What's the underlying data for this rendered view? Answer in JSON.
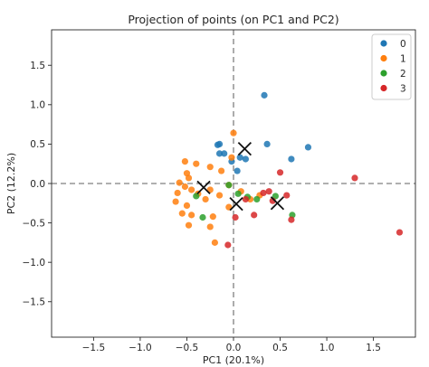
{
  "chart_data": {
    "type": "scatter",
    "title": "Projection of points (on PC1 and PC2)",
    "xlabel": "PC1 (20.1%)",
    "ylabel": "PC2 (12.2%)",
    "xlim": [
      -1.95,
      1.95
    ],
    "ylim": [
      -1.95,
      1.95
    ],
    "xticks": [
      {
        "value": -1.5,
        "label": "−1.5"
      },
      {
        "value": -1.0,
        "label": "−1.0"
      },
      {
        "value": -0.5,
        "label": "−0.5"
      },
      {
        "value": 0.0,
        "label": "0.0"
      },
      {
        "value": 0.5,
        "label": "0.5"
      },
      {
        "value": 1.0,
        "label": "1.0"
      },
      {
        "value": 1.5,
        "label": "1.5"
      }
    ],
    "yticks": [
      {
        "value": 1.5,
        "label": "1.5"
      },
      {
        "value": 1.0,
        "label": "1.0"
      },
      {
        "value": 0.5,
        "label": "0.5"
      },
      {
        "value": 0.0,
        "label": "0.0"
      },
      {
        "value": -0.5,
        "label": "−0.5"
      },
      {
        "value": -1.0,
        "label": "−1.0"
      },
      {
        "value": -1.5,
        "label": "−1.5"
      }
    ],
    "grid": false,
    "reference_lines": {
      "x": 0,
      "y": 0,
      "style": "dashed",
      "color": "#808080"
    },
    "legend_position": "top-right",
    "series": [
      {
        "name": "0",
        "color": "#1f77b4",
        "points": [
          [
            0.33,
            1.12
          ],
          [
            0.36,
            0.5
          ],
          [
            0.8,
            0.46
          ],
          [
            0.62,
            0.31
          ],
          [
            -0.17,
            0.49
          ],
          [
            -0.15,
            0.5
          ],
          [
            -0.15,
            0.38
          ],
          [
            -0.1,
            0.38
          ],
          [
            0.07,
            0.33
          ],
          [
            0.13,
            0.31
          ],
          [
            0.04,
            0.16
          ],
          [
            -0.02,
            0.28
          ]
        ]
      },
      {
        "name": "1",
        "color": "#ff7f0e",
        "points": [
          [
            -0.52,
            0.28
          ],
          [
            -0.4,
            0.25
          ],
          [
            -0.25,
            0.21
          ],
          [
            -0.13,
            0.16
          ],
          [
            -0.5,
            0.13
          ],
          [
            -0.48,
            0.07
          ],
          [
            -0.58,
            0.01
          ],
          [
            -0.52,
            -0.04
          ],
          [
            -0.45,
            -0.08
          ],
          [
            -0.6,
            -0.12
          ],
          [
            -0.62,
            -0.23
          ],
          [
            -0.5,
            -0.28
          ],
          [
            -0.55,
            -0.38
          ],
          [
            -0.45,
            -0.4
          ],
          [
            -0.48,
            -0.53
          ],
          [
            -0.38,
            -0.13
          ],
          [
            -0.25,
            -0.08
          ],
          [
            -0.15,
            -0.15
          ],
          [
            -0.22,
            -0.42
          ],
          [
            -0.25,
            -0.55
          ],
          [
            -0.2,
            -0.75
          ],
          [
            0.0,
            0.64
          ],
          [
            -0.02,
            0.33
          ],
          [
            -0.05,
            -0.02
          ],
          [
            -0.05,
            -0.3
          ],
          [
            0.08,
            -0.1
          ],
          [
            0.18,
            -0.2
          ],
          [
            0.28,
            -0.15
          ],
          [
            -0.3,
            -0.2
          ]
        ]
      },
      {
        "name": "2",
        "color": "#2ca02c",
        "points": [
          [
            -0.4,
            -0.16
          ],
          [
            -0.33,
            -0.43
          ],
          [
            -0.05,
            -0.02
          ],
          [
            0.05,
            -0.13
          ],
          [
            0.15,
            -0.17
          ],
          [
            0.25,
            -0.2
          ],
          [
            0.63,
            -0.4
          ],
          [
            0.45,
            -0.16
          ]
        ]
      },
      {
        "name": "3",
        "color": "#d62728",
        "points": [
          [
            1.3,
            0.07
          ],
          [
            1.78,
            -0.62
          ],
          [
            0.5,
            0.14
          ],
          [
            0.38,
            -0.1
          ],
          [
            0.32,
            -0.12
          ],
          [
            0.57,
            -0.15
          ],
          [
            0.42,
            -0.22
          ],
          [
            0.22,
            -0.4
          ],
          [
            0.62,
            -0.46
          ],
          [
            0.02,
            -0.43
          ],
          [
            -0.06,
            -0.78
          ],
          [
            0.13,
            -0.2
          ]
        ]
      }
    ],
    "centroids": {
      "marker": "x",
      "color": "#111111",
      "points": [
        [
          0.12,
          0.44
        ],
        [
          -0.32,
          -0.05
        ],
        [
          0.03,
          -0.26
        ],
        [
          0.47,
          -0.25
        ]
      ]
    }
  }
}
